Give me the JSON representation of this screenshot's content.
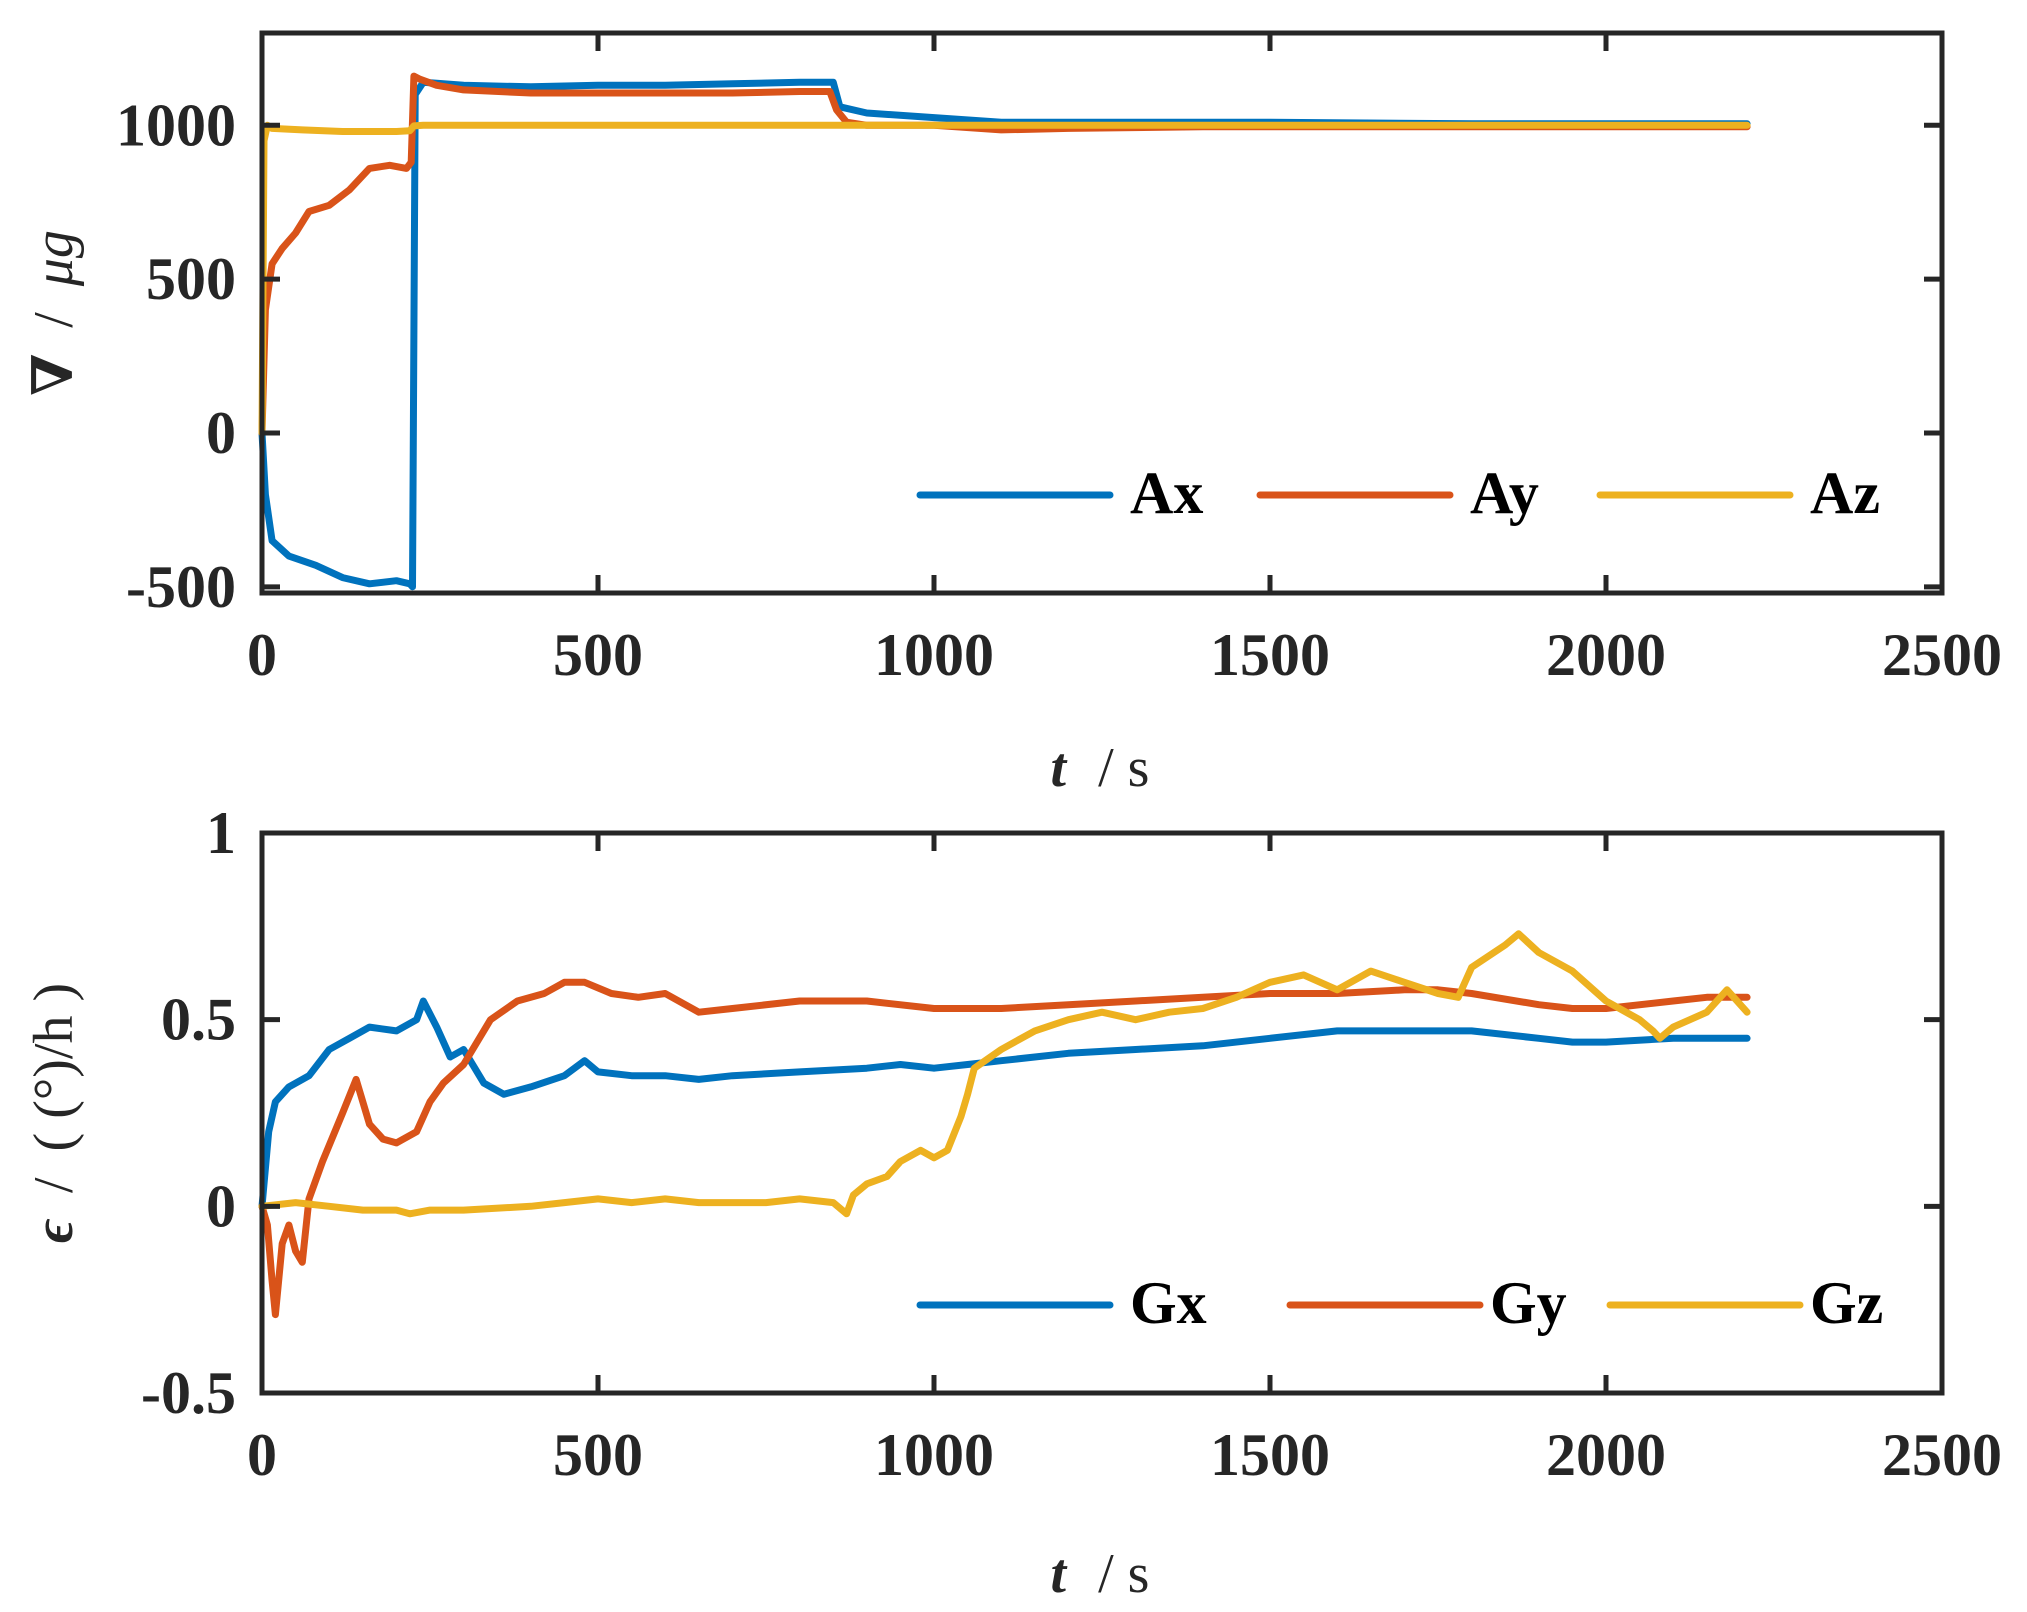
{
  "chart_data": [
    {
      "type": "line",
      "title": "",
      "xlabel_var": "t",
      "xlabel_unit": "/ s",
      "ylabel_var": "∇",
      "ylabel_sep": "/",
      "ylabel_unit": "μg",
      "xlim": [
        0,
        2500
      ],
      "ylim": [
        -520,
        1300
      ],
      "xticks": [
        0,
        500,
        1000,
        1500,
        2000,
        2500
      ],
      "xtick_labels": [
        "0",
        "500",
        "1000",
        "1500",
        "2000",
        "2500"
      ],
      "yticks": [
        -500,
        0,
        500,
        1000
      ],
      "ytick_labels": [
        "-500",
        "0",
        "500",
        "1000"
      ],
      "legend_position": "bottom-right",
      "series": [
        {
          "name": "Ax",
          "color": "#0072BD",
          "x": [
            0,
            5,
            15,
            40,
            80,
            120,
            160,
            200,
            220,
            224,
            228,
            240,
            300,
            400,
            500,
            600,
            700,
            800,
            850,
            860,
            900,
            1000,
            1100,
            1300,
            1500,
            1800,
            2000,
            2210
          ],
          "y": [
            0,
            -200,
            -350,
            -400,
            -430,
            -470,
            -490,
            -480,
            -490,
            -500,
            1100,
            1140,
            1130,
            1125,
            1130,
            1130,
            1135,
            1140,
            1140,
            1060,
            1040,
            1025,
            1010,
            1010,
            1010,
            1005,
            1005,
            1005
          ]
        },
        {
          "name": "Ay",
          "color": "#D95319",
          "x": [
            0,
            5,
            15,
            30,
            50,
            70,
            100,
            130,
            160,
            190,
            215,
            222,
            226,
            235,
            260,
            300,
            400,
            500,
            600,
            700,
            800,
            845,
            855,
            870,
            900,
            1000,
            1100,
            1200,
            1400,
            1600,
            1800,
            2000,
            2210
          ],
          "y": [
            0,
            400,
            550,
            600,
            650,
            720,
            740,
            790,
            860,
            870,
            860,
            880,
            1160,
            1150,
            1130,
            1115,
            1105,
            1105,
            1105,
            1105,
            1110,
            1110,
            1050,
            1010,
            1000,
            1000,
            985,
            990,
            995,
            995,
            995,
            995,
            995
          ]
        },
        {
          "name": "Az",
          "color": "#EDB120",
          "x": [
            0,
            3,
            8,
            15,
            60,
            120,
            200,
            220,
            226,
            240,
            300,
            500,
            1000,
            1500,
            2000,
            2210
          ],
          "y": [
            0,
            950,
            1000,
            990,
            985,
            980,
            980,
            982,
            998,
            1000,
            1000,
            1000,
            1000,
            1000,
            1000,
            1000
          ]
        }
      ]
    },
    {
      "type": "line",
      "title": "",
      "xlabel_var": "t",
      "xlabel_unit": "/ s",
      "ylabel_var": "ϵ",
      "ylabel_sep": "/",
      "ylabel_unit": "( (°)/h )",
      "xlim": [
        0,
        2500
      ],
      "ylim": [
        -0.5,
        1
      ],
      "xticks": [
        0,
        500,
        1000,
        1500,
        2000,
        2500
      ],
      "xtick_labels": [
        "0",
        "500",
        "1000",
        "1500",
        "2000",
        "2500"
      ],
      "yticks": [
        -0.5,
        0,
        0.5,
        1
      ],
      "ytick_labels": [
        "-0.5",
        "0",
        "0.5",
        "1"
      ],
      "legend_position": "bottom-right",
      "series": [
        {
          "name": "Gx",
          "color": "#0072BD",
          "x": [
            0,
            10,
            20,
            40,
            70,
            100,
            130,
            160,
            200,
            230,
            240,
            260,
            280,
            300,
            330,
            360,
            400,
            450,
            480,
            500,
            550,
            600,
            650,
            700,
            800,
            900,
            950,
            1000,
            1050,
            1100,
            1200,
            1300,
            1400,
            1500,
            1600,
            1700,
            1800,
            1900,
            1950,
            2000,
            2100,
            2210
          ],
          "y": [
            0,
            0.2,
            0.28,
            0.32,
            0.35,
            0.42,
            0.45,
            0.48,
            0.47,
            0.5,
            0.55,
            0.48,
            0.4,
            0.42,
            0.33,
            0.3,
            0.32,
            0.35,
            0.39,
            0.36,
            0.35,
            0.35,
            0.34,
            0.35,
            0.36,
            0.37,
            0.38,
            0.37,
            0.38,
            0.39,
            0.41,
            0.42,
            0.43,
            0.45,
            0.47,
            0.47,
            0.47,
            0.45,
            0.44,
            0.44,
            0.45,
            0.45
          ]
        },
        {
          "name": "Gy",
          "color": "#D95319",
          "x": [
            0,
            8,
            15,
            20,
            30,
            40,
            50,
            60,
            70,
            90,
            120,
            140,
            160,
            180,
            200,
            230,
            250,
            270,
            300,
            340,
            380,
            420,
            450,
            480,
            520,
            560,
            600,
            650,
            700,
            800,
            900,
            1000,
            1100,
            1200,
            1300,
            1400,
            1500,
            1600,
            1700,
            1750,
            1800,
            1900,
            1950,
            2000,
            2100,
            2150,
            2210
          ],
          "y": [
            0,
            -0.05,
            -0.2,
            -0.29,
            -0.1,
            -0.05,
            -0.12,
            -0.15,
            0.02,
            0.12,
            0.25,
            0.34,
            0.22,
            0.18,
            0.17,
            0.2,
            0.28,
            0.33,
            0.38,
            0.5,
            0.55,
            0.57,
            0.6,
            0.6,
            0.57,
            0.56,
            0.57,
            0.52,
            0.53,
            0.55,
            0.55,
            0.53,
            0.53,
            0.54,
            0.55,
            0.56,
            0.57,
            0.57,
            0.58,
            0.58,
            0.57,
            0.54,
            0.53,
            0.53,
            0.55,
            0.56,
            0.56
          ]
        },
        {
          "name": "Gz",
          "color": "#EDB120",
          "x": [
            0,
            50,
            100,
            150,
            200,
            220,
            250,
            300,
            400,
            450,
            500,
            550,
            600,
            650,
            700,
            750,
            800,
            850,
            870,
            880,
            900,
            930,
            950,
            980,
            1000,
            1020,
            1040,
            1050,
            1060,
            1100,
            1150,
            1200,
            1250,
            1300,
            1350,
            1400,
            1450,
            1500,
            1550,
            1600,
            1650,
            1700,
            1750,
            1780,
            1800,
            1850,
            1870,
            1900,
            1950,
            2000,
            2050,
            2070,
            2080,
            2100,
            2150,
            2180,
            2210
          ],
          "y": [
            0,
            0.01,
            0,
            -0.01,
            -0.01,
            -0.02,
            -0.01,
            -0.01,
            0,
            0.01,
            0.02,
            0.01,
            0.02,
            0.01,
            0.01,
            0.01,
            0.02,
            0.01,
            -0.02,
            0.03,
            0.06,
            0.08,
            0.12,
            0.15,
            0.13,
            0.15,
            0.24,
            0.3,
            0.37,
            0.42,
            0.47,
            0.5,
            0.52,
            0.5,
            0.52,
            0.53,
            0.56,
            0.6,
            0.62,
            0.58,
            0.63,
            0.6,
            0.57,
            0.56,
            0.64,
            0.7,
            0.73,
            0.68,
            0.63,
            0.55,
            0.5,
            0.47,
            0.45,
            0.48,
            0.52,
            0.58,
            0.52
          ]
        }
      ]
    }
  ]
}
